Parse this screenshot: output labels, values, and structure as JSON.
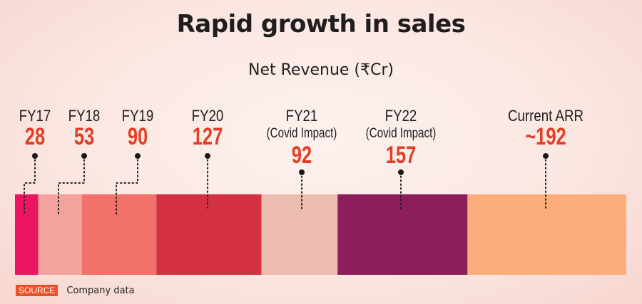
{
  "chart_data": {
    "type": "bar",
    "orientation": "horizontal-stacked-segments",
    "title": "Rapid growth in sales",
    "subtitle": "Net Revenue (₹Cr)",
    "xlabel": "",
    "ylabel": "",
    "categories": [
      "FY17",
      "FY18",
      "FY19",
      "FY20",
      "FY21",
      "FY22",
      "Current ARR"
    ],
    "notes": [
      "",
      "",
      "",
      "",
      "(Covid Impact)",
      "(Covid Impact)",
      ""
    ],
    "values": [
      28,
      53,
      90,
      127,
      92,
      157,
      192
    ],
    "value_labels": [
      "28",
      "53",
      "90",
      "127",
      "92",
      "157",
      "~192"
    ],
    "colors": [
      "#ec1561",
      "#f3a29d",
      "#f2726b",
      "#d33142",
      "#ecbcb1",
      "#8c1f5b",
      "#fbae7c"
    ],
    "legend": "none",
    "grid": false
  },
  "source": {
    "tag": "SOURCE",
    "text": "Company data"
  },
  "colors": {
    "value_text": "#e23d25",
    "source_tag": "#e8512a"
  }
}
